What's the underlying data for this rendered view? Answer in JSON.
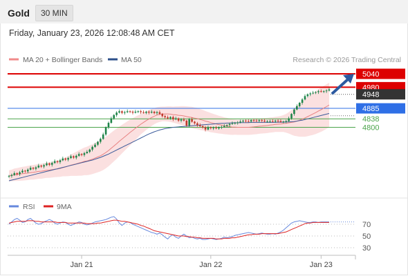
{
  "header": {
    "symbol": "Gold",
    "interval": "30 MIN"
  },
  "datetime": "Friday, January 23, 2026 12:08:48 AM CET",
  "credit": "Research © 2026 Trading Central",
  "colors": {
    "up": "#1e8449",
    "down": "#c0392b",
    "resistance": "#dd0000",
    "pivot": "#2f6fe6",
    "support": "#49a349",
    "ma20": "#e88080",
    "ma50": "#3a5a9a",
    "band": "#f9d6d6",
    "rsi": "#6688dd",
    "rsi_ma": "#dd2222",
    "arrow": "#2c5aa0"
  },
  "chart_data": [
    {
      "type": "candlestick",
      "legend": [
        {
          "name": "MA 20 + Bollinger Bands",
          "color": "#f08a8a"
        },
        {
          "name": "MA 50",
          "color": "#2c4f8a"
        }
      ],
      "x_tick_labels": [
        "Jan 21",
        "Jan 22",
        "Jan 23"
      ],
      "x_tick_index": [
        27,
        75,
        116
      ],
      "ylim": [
        4450,
        5065
      ],
      "last_price": "4948",
      "levels": [
        {
          "value": 5040,
          "label": "5040",
          "kind": "resistance"
        },
        {
          "value": 4980,
          "label": "4980",
          "kind": "resistance"
        },
        {
          "value": 4885,
          "label": "4885",
          "kind": "pivot"
        },
        {
          "value": 4838,
          "label": "4838",
          "kind": "support"
        },
        {
          "value": 4800,
          "label": "4800",
          "kind": "support"
        }
      ],
      "target_arrow": {
        "from_index": 120,
        "from_value": 4950,
        "to_index": 131,
        "to_value": 5040
      },
      "close": [
        4582,
        4586,
        4594,
        4590,
        4598,
        4605,
        4602,
        4610,
        4618,
        4614,
        4620,
        4628,
        4624,
        4630,
        4638,
        4632,
        4640,
        4648,
        4644,
        4652,
        4660,
        4655,
        4662,
        4670,
        4664,
        4672,
        4680,
        4676,
        4684,
        4690,
        4700,
        4712,
        4722,
        4735,
        4748,
        4768,
        4800,
        4820,
        4840,
        4855,
        4866,
        4872,
        4865,
        4868,
        4872,
        4870,
        4866,
        4870,
        4872,
        4868,
        4865,
        4870,
        4866,
        4870,
        4864,
        4868,
        4860,
        4850,
        4845,
        4840,
        4846,
        4836,
        4840,
        4830,
        4835,
        4830,
        4808,
        4836,
        4825,
        4818,
        4810,
        4805,
        4800,
        4790,
        4800,
        4796,
        4798,
        4795,
        4800,
        4802,
        4806,
        4810,
        4815,
        4818,
        4820,
        4822,
        4826,
        4830,
        4828,
        4826,
        4832,
        4830,
        4828,
        4832,
        4830,
        4826,
        4828,
        4828,
        4826,
        4830,
        4828,
        4824,
        4826,
        4828,
        4840,
        4860,
        4880,
        4895,
        4910,
        4925,
        4940,
        4948,
        4952,
        4955,
        4958,
        4962,
        4960,
        4962,
        4965,
        4970
      ],
      "sma20": [
        4582,
        4584,
        4587,
        4588,
        4590,
        4592,
        4593,
        4595,
        4597,
        4598,
        4600,
        4602,
        4603,
        4605,
        4607,
        4608,
        4610,
        4612,
        4613,
        4615,
        4619,
        4622,
        4626,
        4630,
        4633,
        4636,
        4640,
        4643,
        4647,
        4649,
        4653,
        4657,
        4662,
        4667,
        4672,
        4679,
        4687,
        4696,
        4706,
        4716,
        4726,
        4737,
        4747,
        4757,
        4767,
        4777,
        4786,
        4796,
        4805,
        4814,
        4822,
        4830,
        4837,
        4844,
        4850,
        4855,
        4858,
        4860,
        4860,
        4860,
        4859,
        4857,
        4856,
        4854,
        4853,
        4851,
        4848,
        4846,
        4844,
        4841,
        4839,
        4835,
        4832,
        4828,
        4825,
        4821,
        4818,
        4815,
        4812,
        4810,
        4807,
        4805,
        4803,
        4801,
        4801,
        4800,
        4800,
        4800,
        4800,
        4800,
        4801,
        4802,
        4803,
        4805,
        4806,
        4807,
        4808,
        4810,
        4811,
        4813,
        4814,
        4815,
        4817,
        4818,
        4820,
        4822,
        4824,
        4828,
        4832,
        4837,
        4842,
        4848,
        4854,
        4860,
        4866,
        4873,
        4879,
        4886,
        4893,
        4900
      ],
      "band_width": [
        25,
        26,
        28,
        29,
        30,
        31,
        31,
        32,
        32,
        33,
        33,
        33,
        34,
        34,
        34,
        35,
        35,
        36,
        36,
        37,
        39,
        42,
        45,
        48,
        51,
        54,
        57,
        60,
        62,
        64,
        66,
        67,
        68,
        69,
        70,
        71,
        71,
        71,
        70,
        69,
        68,
        66,
        64,
        62,
        60,
        58,
        55,
        52,
        49,
        46,
        44,
        42,
        40,
        38,
        36,
        35,
        34,
        33,
        33,
        34,
        35,
        36,
        38,
        40,
        42,
        44,
        46,
        47,
        48,
        48,
        48,
        47,
        46,
        45,
        44,
        43,
        42,
        41,
        40,
        39,
        38,
        37,
        36,
        35,
        34,
        34,
        34,
        34,
        34,
        34,
        34,
        34,
        34,
        34,
        34,
        34,
        34,
        34,
        34,
        34,
        35,
        36,
        38,
        42,
        48,
        55,
        62,
        68,
        74,
        79,
        84,
        88,
        91,
        94,
        96,
        98,
        99,
        100,
        100,
        100
      ],
      "sma50": [
        4560,
        4563,
        4566,
        4569,
        4572,
        4575,
        4578,
        4581,
        4584,
        4587,
        4590,
        4593,
        4596,
        4599,
        4602,
        4605,
        4608,
        4611,
        4614,
        4617,
        4620,
        4623,
        4626,
        4629,
        4632,
        4635,
        4638,
        4641,
        4644,
        4647,
        4650,
        4653,
        4657,
        4661,
        4665,
        4670,
        4675,
        4680,
        4686,
        4692,
        4698,
        4704,
        4710,
        4716,
        4722,
        4728,
        4734,
        4740,
        4746,
        4752,
        4758,
        4764,
        4770,
        4775,
        4780,
        4784,
        4788,
        4791,
        4794,
        4796,
        4798,
        4800,
        4801,
        4802,
        4803,
        4804,
        4805,
        4806,
        4807,
        4808,
        4809,
        4810,
        4811,
        4812,
        4813,
        4814,
        4815,
        4816,
        4817,
        4818,
        4818,
        4819,
        4819,
        4820,
        4820,
        4820,
        4821,
        4821,
        4821,
        4821,
        4822,
        4822,
        4822,
        4822,
        4822,
        4822,
        4822,
        4822,
        4822,
        4822,
        4823,
        4823,
        4823,
        4824,
        4824,
        4825,
        4826,
        4828,
        4830,
        4832,
        4835,
        4838,
        4841,
        4844,
        4847,
        4850,
        4853,
        4856,
        4859,
        4862
      ]
    },
    {
      "type": "line",
      "title": "RSI",
      "legend": [
        {
          "name": "RSI",
          "color": "#6688dd"
        },
        {
          "name": "9MA",
          "color": "#dd2222"
        }
      ],
      "y_ticks": [
        "70",
        "50",
        "30"
      ],
      "y_tick_values": [
        70,
        50,
        30
      ],
      "ylim": [
        20,
        90
      ],
      "series": [
        {
          "name": "RSI",
          "values": [
            70,
            74,
            78,
            80,
            77,
            73,
            74,
            78,
            80,
            76,
            72,
            70,
            71,
            74,
            76,
            78,
            76,
            72,
            70,
            72,
            74,
            73,
            70,
            68,
            70,
            72,
            74,
            73,
            70,
            69,
            70,
            72,
            74,
            75,
            76,
            77,
            78,
            80,
            82,
            83,
            79,
            72,
            68,
            72,
            74,
            73,
            70,
            68,
            66,
            64,
            62,
            60,
            58,
            56,
            55,
            53,
            55,
            52,
            48,
            45,
            50,
            52,
            48,
            46,
            50,
            53,
            50,
            47,
            48,
            46,
            45,
            46,
            44,
            44,
            45,
            46,
            45,
            44,
            45,
            46,
            48,
            47,
            48,
            49,
            51,
            52,
            53,
            54,
            55,
            56,
            55,
            54,
            53,
            54,
            55,
            54,
            53,
            53,
            54,
            53,
            55,
            57,
            60,
            64,
            68,
            72,
            74,
            75,
            76,
            75,
            74,
            73,
            73,
            74,
            74,
            73,
            74,
            74,
            74,
            74
          ]
        },
        {
          "name": "9MA",
          "values": [
            72,
            73,
            74,
            75,
            75,
            75,
            75,
            76,
            76,
            76,
            75,
            75,
            74,
            74,
            74,
            74,
            74,
            74,
            73,
            73,
            73,
            73,
            72,
            72,
            72,
            72,
            72,
            72,
            72,
            71,
            71,
            71,
            71,
            72,
            72,
            73,
            74,
            75,
            76,
            77,
            77,
            76,
            75,
            75,
            74,
            73,
            72,
            71,
            70,
            68,
            67,
            65,
            63,
            61,
            59,
            58,
            57,
            56,
            55,
            54,
            53,
            52,
            51,
            50,
            50,
            50,
            49,
            49,
            48,
            48,
            47,
            47,
            46,
            46,
            46,
            46,
            46,
            45,
            45,
            45,
            46,
            46,
            46,
            47,
            47,
            48,
            49,
            50,
            51,
            52,
            52,
            53,
            53,
            53,
            54,
            54,
            54,
            54,
            54,
            54,
            54,
            55,
            56,
            57,
            59,
            61,
            63,
            65,
            67,
            69,
            71,
            72,
            72,
            73,
            73,
            73,
            73,
            73,
            73,
            73
          ]
        }
      ]
    }
  ]
}
